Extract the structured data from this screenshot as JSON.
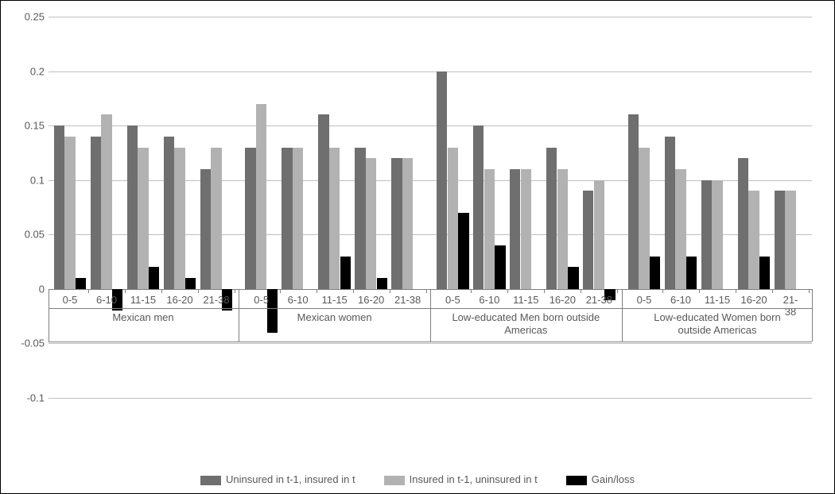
{
  "chart": {
    "type": "bar",
    "ylim": [
      -0.1,
      0.25
    ],
    "ytick_step": 0.05,
    "yticks": [
      -0.1,
      -0.05,
      0,
      0.05,
      0.1,
      0.15,
      0.2,
      0.25
    ],
    "grid_color": "#bfbfbf",
    "axis_color": "#808080",
    "background_color": "#ffffff",
    "label_fontsize": 13,
    "label_color": "#595959",
    "bar_gap_ratio": 0.02,
    "cluster_gap_ratio": 0.4,
    "group_gap_ratio": 0.8,
    "series": [
      {
        "name": "Uninsured in t-1, insured in t",
        "color": "#6f6f6f"
      },
      {
        "name": "Insured in t-1, uninsured in t",
        "color": "#b2b2b2"
      },
      {
        "name": "Gain/loss",
        "color": "#000000"
      }
    ],
    "groups": [
      {
        "label": "Mexican men",
        "clusters": [
          {
            "label": "0-5",
            "values": [
              0.15,
              0.14,
              0.01
            ]
          },
          {
            "label": "6-10",
            "values": [
              0.14,
              0.16,
              -0.02
            ]
          },
          {
            "label": "11-15",
            "values": [
              0.15,
              0.13,
              0.02
            ]
          },
          {
            "label": "16-20",
            "values": [
              0.14,
              0.13,
              0.01
            ]
          },
          {
            "label": "21-38",
            "values": [
              0.11,
              0.13,
              -0.02
            ]
          }
        ]
      },
      {
        "label": "Mexican women",
        "clusters": [
          {
            "label": "0-5",
            "values": [
              0.13,
              0.17,
              -0.04
            ]
          },
          {
            "label": "6-10",
            "values": [
              0.13,
              0.13,
              0.0
            ]
          },
          {
            "label": "11-15",
            "values": [
              0.16,
              0.13,
              0.03
            ]
          },
          {
            "label": "16-20",
            "values": [
              0.13,
              0.12,
              0.01
            ]
          },
          {
            "label": "21-38",
            "values": [
              0.12,
              0.12,
              0.0
            ]
          }
        ]
      },
      {
        "label": "Low-educated Men born outside\nAmericas",
        "clusters": [
          {
            "label": "0-5",
            "values": [
              0.2,
              0.13,
              0.07
            ]
          },
          {
            "label": "6-10",
            "values": [
              0.15,
              0.11,
              0.04
            ]
          },
          {
            "label": "11-15",
            "values": [
              0.11,
              0.11,
              0.0
            ]
          },
          {
            "label": "16-20",
            "values": [
              0.13,
              0.11,
              0.02
            ]
          },
          {
            "label": "21-38",
            "values": [
              0.09,
              0.1,
              -0.01
            ]
          }
        ]
      },
      {
        "label": "Low-educated Women born\noutside Americas",
        "clusters": [
          {
            "label": "0-5",
            "values": [
              0.16,
              0.13,
              0.03
            ]
          },
          {
            "label": "6-10",
            "values": [
              0.14,
              0.11,
              0.03
            ]
          },
          {
            "label": "11-15",
            "values": [
              0.1,
              0.1,
              0.0
            ]
          },
          {
            "label": "16-20",
            "values": [
              0.12,
              0.09,
              0.03
            ]
          },
          {
            "label": "21-38",
            "values": [
              0.09,
              0.09,
              0.0
            ]
          }
        ]
      }
    ]
  }
}
